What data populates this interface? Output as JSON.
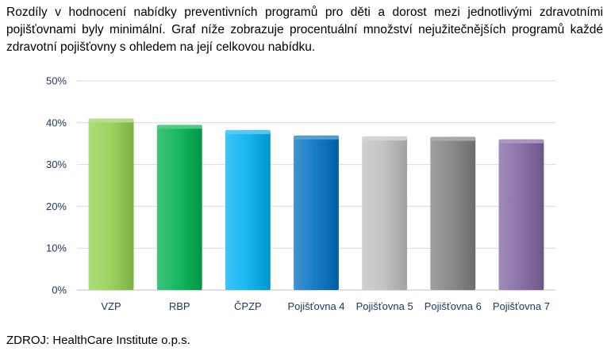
{
  "intro_text": "Rozdíly v hodnocení nabídky preventivních programů pro děti a dorost mezi jednotlivými zdravotními pojišťovnami byly minimální. Graf níže zobrazuje procentuální množství nejužitečnějších programů každé zdravotní pojišťovny s ohledem na její celkovou nabídku.",
  "source_text": "ZDROJ: HealthCare Institute o.p.s.",
  "chart_data": {
    "type": "bar",
    "categories": [
      "VZP",
      "RBP",
      "ČPZP",
      "Pojišťovna 4",
      "Pojišťovna 5",
      "Pojišťovna 6",
      "Pojišťovna 7"
    ],
    "values": [
      0.41,
      0.395,
      0.382,
      0.369,
      0.367,
      0.366,
      0.36
    ],
    "ylim": [
      0,
      0.5
    ],
    "yticks": [
      0,
      0.1,
      0.2,
      0.3,
      0.4,
      0.5
    ],
    "ytick_labels": [
      "0%",
      "10%",
      "20%",
      "30%",
      "40%",
      "50%"
    ],
    "grid": true,
    "bar_colors": [
      "#92d050",
      "#00b050",
      "#00b0f0",
      "#0070c0",
      "#bfbfbf",
      "#7f7f7f",
      "#8064a2"
    ],
    "tick_label_color": "#1f3864",
    "grid_color": "#d9d9d9"
  }
}
